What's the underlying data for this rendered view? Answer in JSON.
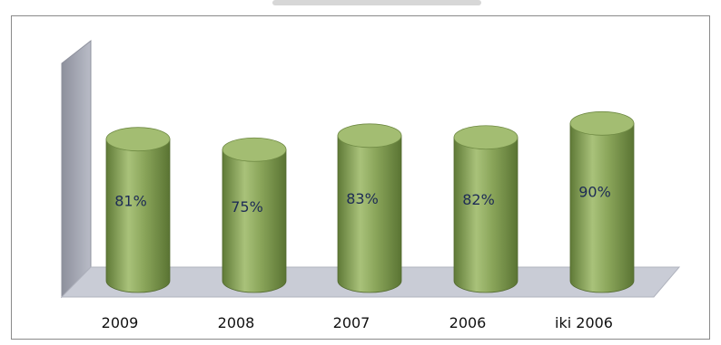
{
  "chart_data": {
    "type": "bar",
    "categories": [
      "2009",
      "2008",
      "2007",
      "2006",
      "iki 2006"
    ],
    "values": [
      81,
      75,
      83,
      82,
      90
    ],
    "value_labels": [
      "81%",
      "75%",
      "83%",
      "82%",
      "90%"
    ],
    "ylim": [
      0,
      100
    ],
    "grid": false,
    "legend": "none",
    "colors": {
      "bar_body": "#8aa55a",
      "bar_light": "#b7cc88",
      "bar_dark": "#5f7a37",
      "bar_top": "#a3bd72",
      "wall": "#a9acb8",
      "floor": "#c9ccd6"
    }
  }
}
